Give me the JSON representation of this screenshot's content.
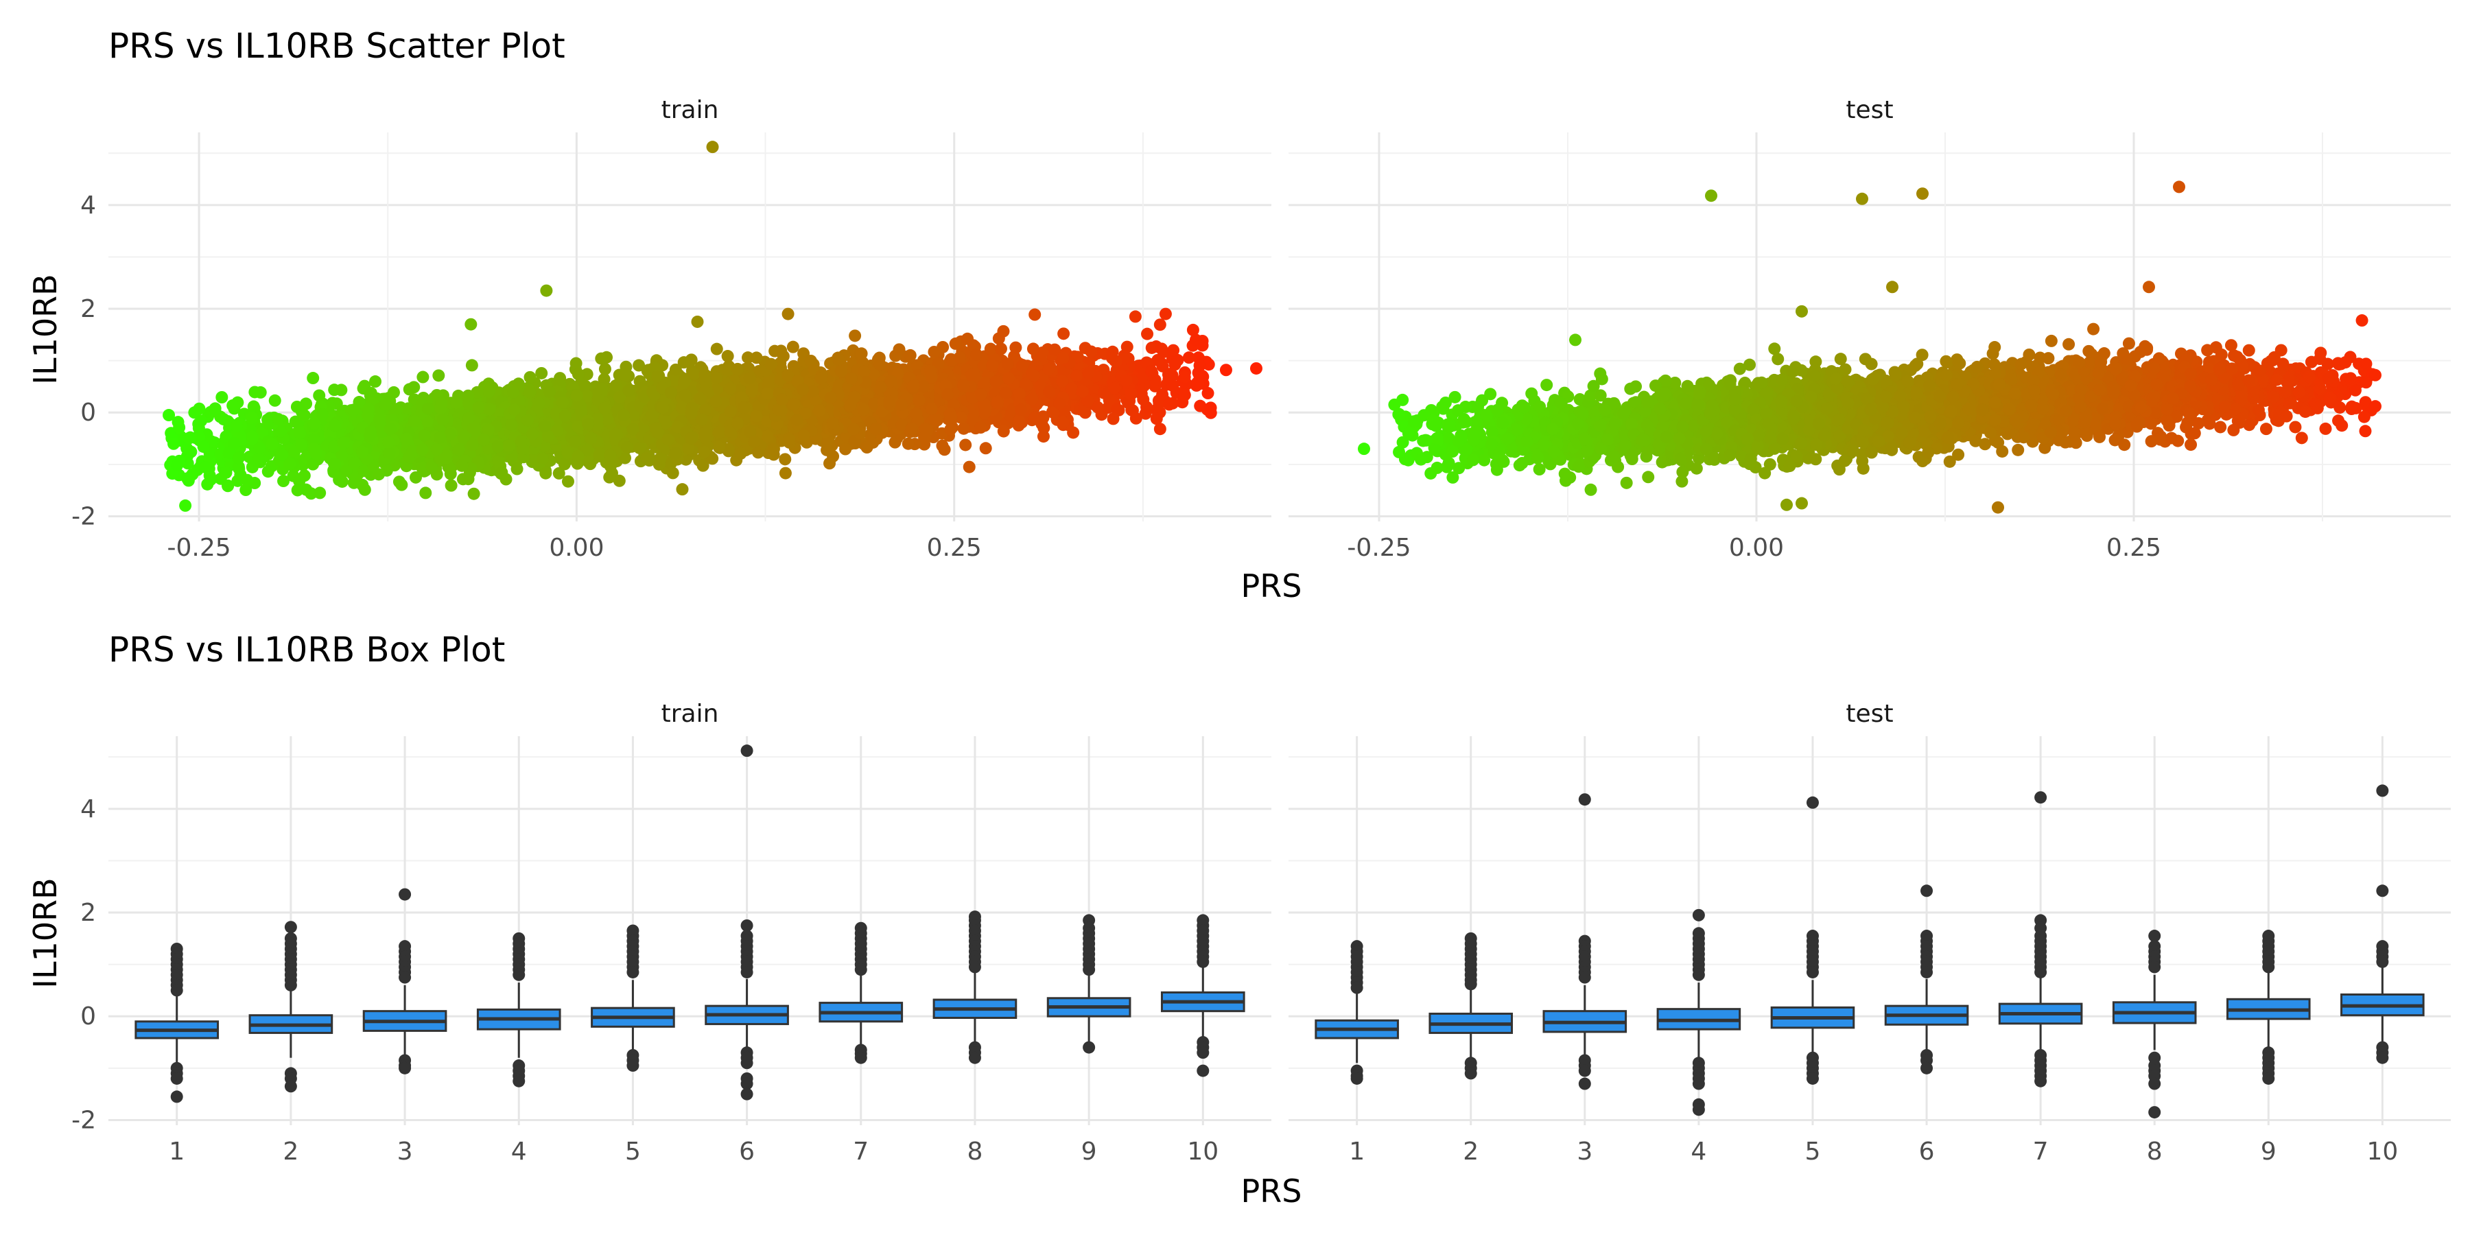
{
  "chart_data": [
    {
      "type": "scatter",
      "title": "PRS vs IL10RB Scatter Plot",
      "xlabel": "PRS",
      "ylabel": "IL10RB",
      "xlim": [
        -0.31,
        0.46
      ],
      "ylim": [
        -2.1,
        5.4
      ],
      "x_ticks": [
        -0.25,
        0.0,
        0.25
      ],
      "x_tick_labels": [
        "-0.25",
        "0.00",
        "0.25"
      ],
      "y_ticks": [
        -2,
        0,
        2,
        4
      ],
      "y_tick_labels": [
        "-2",
        "0",
        "2",
        "4"
      ],
      "color_low": "#33ff00",
      "color_high": "#ff2200",
      "grid": true,
      "panels": [
        {
          "label": "train",
          "xrange": [
            -0.27,
            0.42
          ],
          "slope": 2.1,
          "noise": 0.38,
          "n": 5200,
          "points": [
            {
              "x": 0.09,
              "y": 5.12
            },
            {
              "x": -0.02,
              "y": 2.35
            },
            {
              "x": -0.27,
              "y": -0.05
            },
            {
              "x": 0.45,
              "y": 0.85
            },
            {
              "x": 0.43,
              "y": 0.82
            },
            {
              "x": 0.07,
              "y": -1.48
            },
            {
              "x": -0.1,
              "y": -1.55
            },
            {
              "x": -0.17,
              "y": -1.55
            },
            {
              "x": 0.26,
              "y": -1.05
            },
            {
              "x": 0.37,
              "y": 1.85
            },
            {
              "x": 0.39,
              "y": 1.9
            },
            {
              "x": 0.14,
              "y": 1.9
            },
            {
              "x": 0.08,
              "y": 1.75
            },
            {
              "x": -0.07,
              "y": 1.7
            },
            {
              "x": 0.41,
              "y": 1.4
            }
          ]
        },
        {
          "label": "test",
          "xrange": [
            -0.24,
            0.41
          ],
          "slope": 1.8,
          "noise": 0.36,
          "n": 4200,
          "points": [
            {
              "x": -0.03,
              "y": 4.18
            },
            {
              "x": 0.07,
              "y": 4.12
            },
            {
              "x": 0.11,
              "y": 4.22
            },
            {
              "x": 0.28,
              "y": 4.35
            },
            {
              "x": 0.26,
              "y": 2.42
            },
            {
              "x": 0.09,
              "y": 2.42
            },
            {
              "x": 0.16,
              "y": -1.83
            },
            {
              "x": 0.03,
              "y": -1.75
            },
            {
              "x": 0.02,
              "y": -1.78
            },
            {
              "x": -0.26,
              "y": -0.7
            },
            {
              "x": 0.41,
              "y": 0.12
            },
            {
              "x": 0.41,
              "y": 0.72
            },
            {
              "x": 0.03,
              "y": 1.95
            },
            {
              "x": -0.12,
              "y": 1.4
            }
          ]
        }
      ]
    },
    {
      "type": "box",
      "title": "PRS vs IL10RB Box Plot",
      "xlabel": "PRS",
      "ylabel": "IL10RB",
      "ylim": [
        -2.1,
        5.4
      ],
      "y_ticks": [
        -2,
        0,
        2,
        4
      ],
      "y_tick_labels": [
        "-2",
        "0",
        "2",
        "4"
      ],
      "categories": [
        "1",
        "2",
        "3",
        "4",
        "5",
        "6",
        "7",
        "8",
        "9",
        "10"
      ],
      "box_color": "#2b8fe9",
      "outlier_color": "#333333",
      "grid": true,
      "panels": [
        {
          "label": "train",
          "boxes": [
            {
              "q1": -0.42,
              "median": -0.27,
              "q3": -0.1,
              "whisker_low": -0.9,
              "whisker_high": 0.4,
              "outliers": [
                1.3,
                1.2,
                1.1,
                1.0,
                0.9,
                0.8,
                0.7,
                0.6,
                0.5,
                -1.0,
                -1.1,
                -1.2,
                -1.55
              ]
            },
            {
              "q1": -0.32,
              "median": -0.17,
              "q3": 0.02,
              "whisker_low": -0.8,
              "whisker_high": 0.5,
              "outliers": [
                1.72,
                1.5,
                1.4,
                1.3,
                1.2,
                1.1,
                1.0,
                0.9,
                0.8,
                0.7,
                0.6,
                -1.1,
                -1.2,
                -1.35
              ]
            },
            {
              "q1": -0.28,
              "median": -0.1,
              "q3": 0.1,
              "whisker_low": -0.75,
              "whisker_high": 0.6,
              "outliers": [
                2.35,
                1.35,
                1.25,
                1.15,
                1.05,
                0.95,
                0.85,
                0.75,
                -0.85,
                -0.95,
                -1.0
              ]
            },
            {
              "q1": -0.25,
              "median": -0.05,
              "q3": 0.13,
              "whisker_low": -0.8,
              "whisker_high": 0.65,
              "outliers": [
                1.5,
                1.4,
                1.3,
                1.2,
                1.1,
                1.0,
                0.9,
                0.8,
                -0.95,
                -1.05,
                -1.15,
                -1.25
              ]
            },
            {
              "q1": -0.2,
              "median": -0.02,
              "q3": 0.16,
              "whisker_low": -0.7,
              "whisker_high": 0.7,
              "outliers": [
                1.65,
                1.55,
                1.45,
                1.35,
                1.25,
                1.15,
                1.05,
                0.95,
                0.85,
                -0.75,
                -0.85,
                -0.95
              ]
            },
            {
              "q1": -0.15,
              "median": 0.03,
              "q3": 0.2,
              "whisker_low": -0.65,
              "whisker_high": 0.72,
              "outliers": [
                5.12,
                1.75,
                1.55,
                1.45,
                1.35,
                1.25,
                1.15,
                1.05,
                0.95,
                0.85,
                -0.7,
                -0.8,
                -0.9,
                -1.2,
                -1.3,
                -1.5
              ]
            },
            {
              "q1": -0.1,
              "median": 0.07,
              "q3": 0.26,
              "whisker_low": -0.6,
              "whisker_high": 0.8,
              "outliers": [
                1.7,
                1.6,
                1.5,
                1.4,
                1.3,
                1.2,
                1.1,
                1.0,
                0.9,
                -0.65,
                -0.72,
                -0.8
              ]
            },
            {
              "q1": -0.03,
              "median": 0.14,
              "q3": 0.32,
              "whisker_low": -0.55,
              "whisker_high": 0.85,
              "outliers": [
                1.92,
                1.85,
                1.75,
                1.65,
                1.55,
                1.45,
                1.35,
                1.25,
                1.15,
                1.05,
                0.95,
                -0.6,
                -0.7,
                -0.8
              ]
            },
            {
              "q1": 0.0,
              "median": 0.18,
              "q3": 0.35,
              "whisker_low": -0.5,
              "whisker_high": 0.85,
              "outliers": [
                1.85,
                1.7,
                1.6,
                1.5,
                1.4,
                1.3,
                1.2,
                1.1,
                1.0,
                0.9,
                -0.6
              ]
            },
            {
              "q1": 0.1,
              "median": 0.28,
              "q3": 0.46,
              "whisker_low": -0.4,
              "whisker_high": 0.98,
              "outliers": [
                1.85,
                1.75,
                1.65,
                1.55,
                1.45,
                1.35,
                1.25,
                1.15,
                1.05,
                -0.5,
                -0.6,
                -0.7,
                -1.05
              ]
            }
          ]
        },
        {
          "label": "test",
          "boxes": [
            {
              "q1": -0.42,
              "median": -0.25,
              "q3": -0.08,
              "whisker_low": -0.9,
              "whisker_high": 0.45,
              "outliers": [
                1.35,
                1.25,
                1.15,
                1.05,
                0.95,
                0.85,
                0.75,
                0.65,
                0.55,
                -1.05,
                -1.15,
                -1.2
              ]
            },
            {
              "q1": -0.32,
              "median": -0.15,
              "q3": 0.05,
              "whisker_low": -0.8,
              "whisker_high": 0.55,
              "outliers": [
                1.5,
                1.4,
                1.3,
                1.2,
                1.1,
                1.0,
                0.9,
                0.8,
                0.7,
                0.62,
                -0.9,
                -1.0,
                -1.1
              ]
            },
            {
              "q1": -0.3,
              "median": -0.12,
              "q3": 0.1,
              "whisker_low": -0.8,
              "whisker_high": 0.6,
              "outliers": [
                4.18,
                1.45,
                1.35,
                1.25,
                1.15,
                1.05,
                0.95,
                0.85,
                0.75,
                -0.85,
                -0.95,
                -1.05,
                -1.3
              ]
            },
            {
              "q1": -0.25,
              "median": -0.08,
              "q3": 0.14,
              "whisker_low": -0.8,
              "whisker_high": 0.65,
              "outliers": [
                1.95,
                1.6,
                1.5,
                1.4,
                1.3,
                1.2,
                1.1,
                1.0,
                0.9,
                0.8,
                -0.9,
                -1.0,
                -1.1,
                -1.2,
                -1.3,
                -1.7,
                -1.8
              ]
            },
            {
              "q1": -0.22,
              "median": -0.03,
              "q3": 0.17,
              "whisker_low": -0.75,
              "whisker_high": 0.7,
              "outliers": [
                4.12,
                1.55,
                1.45,
                1.35,
                1.25,
                1.15,
                1.05,
                0.95,
                0.85,
                -0.8,
                -0.9,
                -1.0,
                -1.1,
                -1.2
              ]
            },
            {
              "q1": -0.16,
              "median": 0.02,
              "q3": 0.2,
              "whisker_low": -0.65,
              "whisker_high": 0.72,
              "outliers": [
                2.42,
                1.55,
                1.45,
                1.35,
                1.25,
                1.15,
                1.05,
                0.95,
                0.85,
                -0.75,
                -0.85,
                -1.0
              ]
            },
            {
              "q1": -0.14,
              "median": 0.05,
              "q3": 0.24,
              "whisker_low": -0.65,
              "whisker_high": 0.75,
              "outliers": [
                4.22,
                1.85,
                1.7,
                1.55,
                1.45,
                1.35,
                1.25,
                1.15,
                1.05,
                0.95,
                0.85,
                -0.75,
                -0.85,
                -0.95,
                -1.05,
                -1.15,
                -1.25
              ]
            },
            {
              "q1": -0.13,
              "median": 0.07,
              "q3": 0.27,
              "whisker_low": -0.65,
              "whisker_high": 0.8,
              "outliers": [
                1.55,
                1.35,
                1.25,
                1.15,
                1.05,
                0.95,
                -0.8,
                -0.95,
                -1.05,
                -1.15,
                -1.3,
                -1.85
              ]
            },
            {
              "q1": -0.05,
              "median": 0.12,
              "q3": 0.33,
              "whisker_low": -0.6,
              "whisker_high": 0.85,
              "outliers": [
                1.55,
                1.45,
                1.35,
                1.25,
                1.15,
                1.05,
                0.95,
                -0.7,
                -0.8,
                -0.9,
                -1.0,
                -1.1,
                -1.2
              ]
            },
            {
              "q1": 0.02,
              "median": 0.2,
              "q3": 0.42,
              "whisker_low": -0.5,
              "whisker_high": 0.95,
              "outliers": [
                4.35,
                2.42,
                1.35,
                1.25,
                1.15,
                1.05,
                -0.6,
                -0.7,
                -0.8
              ]
            }
          ]
        }
      ]
    }
  ]
}
